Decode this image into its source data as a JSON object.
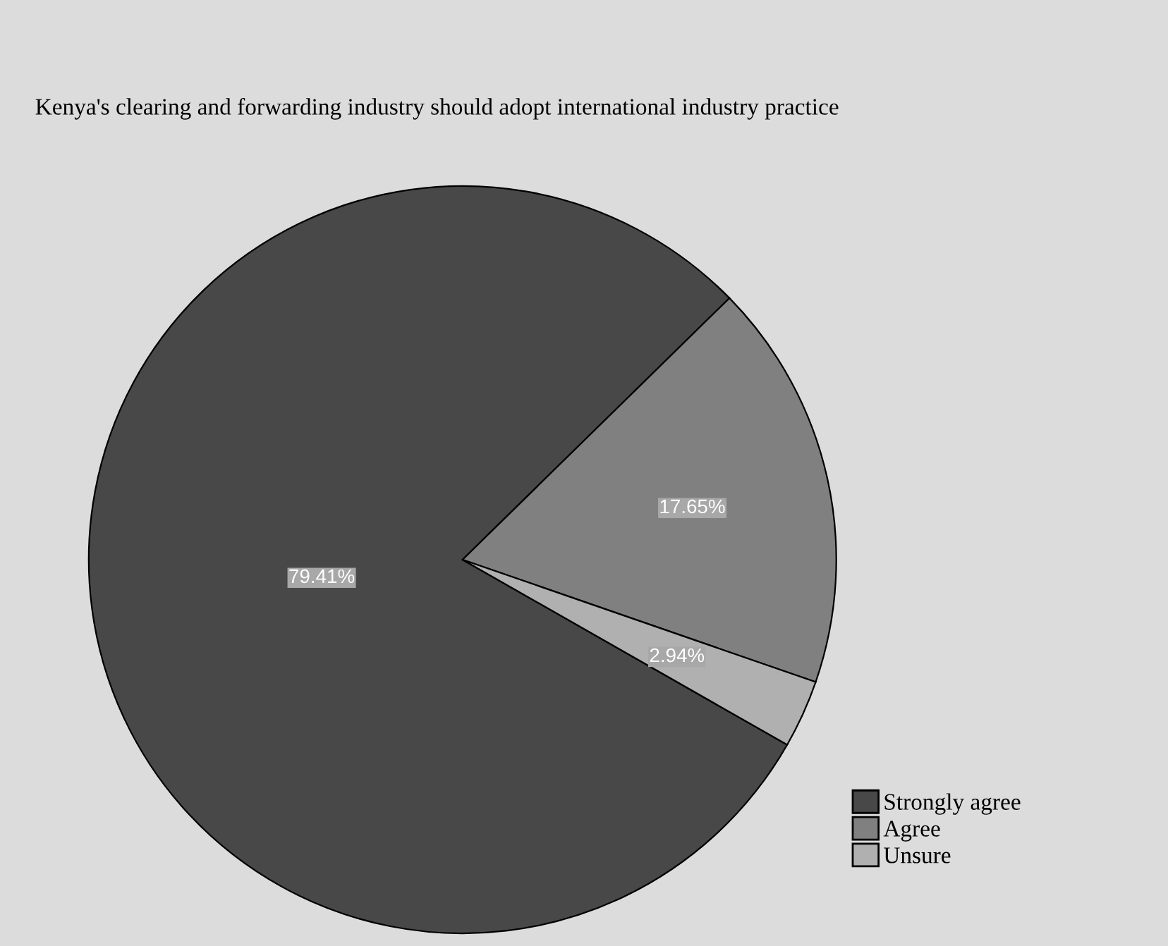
{
  "chart_data": {
    "type": "pie",
    "title": "Kenya's clearing and forwarding industry should adopt international industry practice",
    "categories": [
      "Strongly agree",
      "Agree",
      "Unsure"
    ],
    "values": [
      79.41,
      17.65,
      2.94
    ],
    "colors": [
      "#484848",
      "#808080",
      "#b0b0b0"
    ],
    "value_labels": [
      "79.41%",
      "17.65%",
      "2.94%"
    ],
    "legend": "bottom right"
  }
}
